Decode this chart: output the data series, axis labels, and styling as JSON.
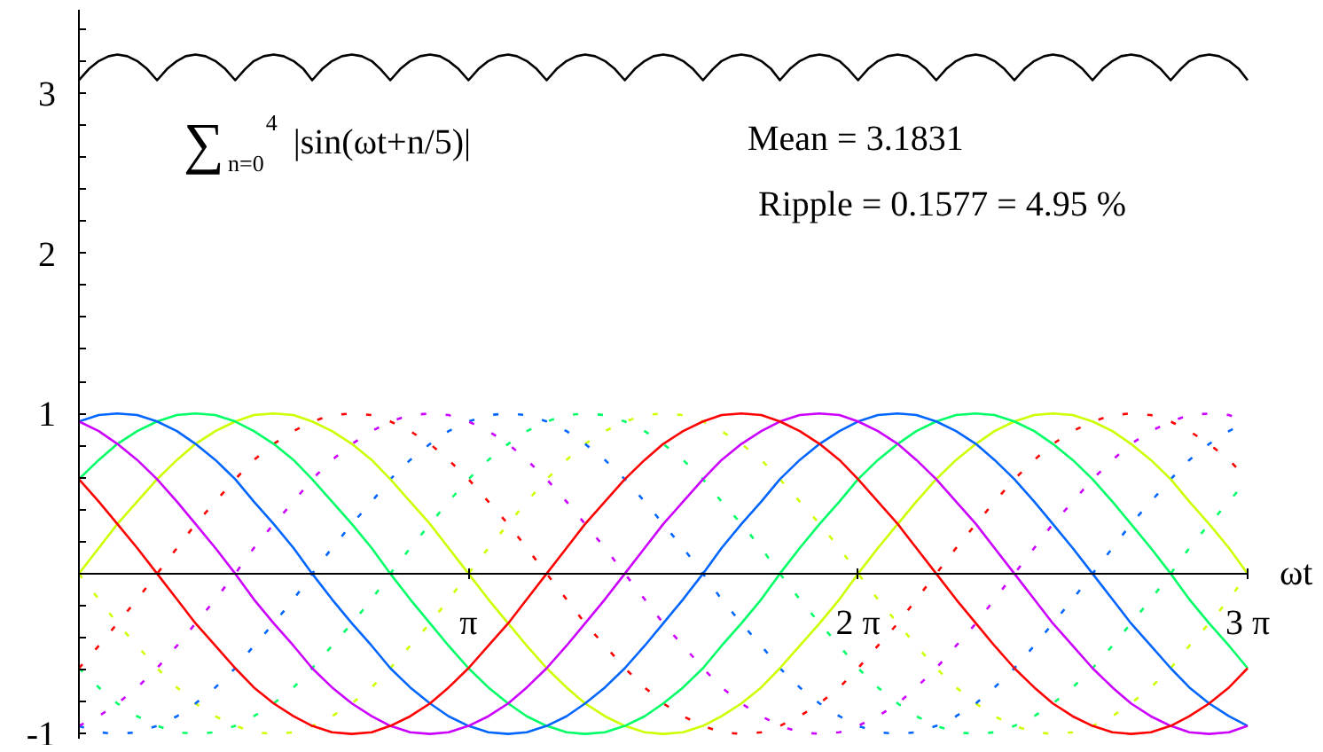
{
  "chart_data": {
    "type": "line",
    "xlabel": "ωt",
    "x": [
      0,
      0.16,
      0.31,
      0.47,
      0.63,
      0.79,
      0.94,
      1.1,
      1.26,
      1.41,
      1.57,
      1.73,
      1.88,
      2.04,
      2.2,
      2.36,
      2.51,
      2.67,
      2.83,
      2.98,
      3.14,
      3.3,
      3.46,
      3.61,
      3.77,
      3.93,
      4.08,
      4.24,
      4.4,
      4.56,
      4.71,
      4.87,
      5.03,
      5.18,
      5.34,
      5.5,
      5.65,
      5.81,
      5.97,
      6.13,
      6.28,
      6.44,
      6.6,
      6.75,
      6.91,
      7.07,
      7.23,
      7.38,
      7.54,
      7.7,
      7.85,
      8.01,
      8.17,
      8.33,
      8.48,
      8.64,
      8.8,
      8.95,
      9.11,
      9.27,
      9.42
    ],
    "xlim": [
      0,
      9.42
    ],
    "xticks": [
      {
        "value": 3.14,
        "label": "π"
      },
      {
        "value": 6.28,
        "label": "2 π"
      },
      {
        "value": 9.42,
        "label": "3 π"
      }
    ],
    "ylim": [
      -1.03,
      3.52
    ],
    "yticks": [
      -1,
      {
        "value": -0.8,
        "label": null
      },
      {
        "value": -0.6,
        "label": null
      },
      {
        "value": -0.4,
        "label": null
      },
      {
        "value": -0.2,
        "label": null
      },
      {
        "value": 0.2,
        "label": null
      },
      {
        "value": 0.4,
        "label": null
      },
      {
        "value": 0.6,
        "label": null
      },
      {
        "value": 0.8,
        "label": null
      },
      1,
      {
        "value": 1.2,
        "label": null
      },
      {
        "value": 1.4,
        "label": null
      },
      {
        "value": 1.6,
        "label": null
      },
      {
        "value": 1.8,
        "label": null
      },
      2,
      {
        "value": 2.2,
        "label": null
      },
      {
        "value": 2.4,
        "label": null
      },
      {
        "value": 2.6,
        "label": null
      },
      {
        "value": 2.8,
        "label": null
      },
      3,
      {
        "value": 3.2,
        "label": null
      },
      {
        "value": 3.4,
        "label": null
      }
    ],
    "series": [
      {
        "color": "#ccff00",
        "line_style": "dotted",
        "values": [
          0,
          -0.16,
          -0.31,
          -0.45,
          -0.59,
          -0.71,
          -0.81,
          -0.89,
          -0.95,
          -0.99,
          -1,
          -0.99,
          -0.95,
          -0.89,
          -0.81,
          -0.71,
          -0.59,
          -0.45,
          -0.31,
          -0.16,
          0,
          0.16,
          0.31,
          0.45,
          0.59,
          0.71,
          0.81,
          0.89,
          0.95,
          0.99,
          1,
          0.99,
          0.95,
          0.89,
          0.81,
          0.71,
          0.59,
          0.45,
          0.31,
          0.16,
          0,
          -0.16,
          -0.31,
          -0.45,
          -0.59,
          -0.71,
          -0.81,
          -0.89,
          -0.95,
          -0.99,
          -1,
          -0.99,
          -0.95,
          -0.89,
          -0.81,
          -0.71,
          -0.59,
          -0.45,
          -0.31,
          -0.16,
          0
        ]
      },
      {
        "color": "#00ff66",
        "line_style": "dotted",
        "values": [
          -0.59,
          -0.71,
          -0.81,
          -0.89,
          -0.95,
          -0.99,
          -1,
          -0.99,
          -0.95,
          -0.89,
          -0.81,
          -0.71,
          -0.59,
          -0.45,
          -0.31,
          -0.16,
          0,
          0.16,
          0.31,
          0.45,
          0.59,
          0.71,
          0.81,
          0.89,
          0.95,
          0.99,
          1,
          0.99,
          0.95,
          0.89,
          0.81,
          0.71,
          0.59,
          0.45,
          0.31,
          0.16,
          0,
          -0.16,
          -0.31,
          -0.45,
          -0.59,
          -0.71,
          -0.81,
          -0.89,
          -0.95,
          -0.99,
          -1,
          -0.99,
          -0.95,
          -0.89,
          -0.81,
          -0.71,
          -0.59,
          -0.45,
          -0.31,
          -0.16,
          0,
          0.16,
          0.31,
          0.45,
          0.59
        ]
      },
      {
        "color": "#0066ff",
        "line_style": "dotted",
        "values": [
          -0.95,
          -0.99,
          -1,
          -0.99,
          -0.95,
          -0.89,
          -0.81,
          -0.71,
          -0.59,
          -0.45,
          -0.31,
          -0.16,
          0,
          0.16,
          0.31,
          0.45,
          0.59,
          0.71,
          0.81,
          0.89,
          0.95,
          0.99,
          1,
          0.99,
          0.95,
          0.89,
          0.81,
          0.71,
          0.59,
          0.45,
          0.31,
          0.16,
          0,
          -0.16,
          -0.31,
          -0.45,
          -0.59,
          -0.71,
          -0.81,
          -0.89,
          -0.95,
          -0.99,
          -1,
          -0.99,
          -0.95,
          -0.89,
          -0.81,
          -0.71,
          -0.59,
          -0.45,
          -0.31,
          -0.16,
          0,
          0.16,
          0.31,
          0.45,
          0.59,
          0.71,
          0.81,
          0.89,
          0.95
        ]
      },
      {
        "color": "#cc00ff",
        "line_style": "dotted",
        "values": [
          -0.95,
          -0.89,
          -0.81,
          -0.71,
          -0.59,
          -0.45,
          -0.31,
          -0.16,
          0,
          0.16,
          0.31,
          0.45,
          0.59,
          0.71,
          0.81,
          0.89,
          0.95,
          0.99,
          1,
          0.99,
          0.95,
          0.89,
          0.81,
          0.71,
          0.59,
          0.45,
          0.31,
          0.16,
          0,
          -0.16,
          -0.31,
          -0.45,
          -0.59,
          -0.71,
          -0.81,
          -0.89,
          -0.95,
          -0.99,
          -1,
          -0.99,
          -0.95,
          -0.89,
          -0.81,
          -0.71,
          -0.59,
          -0.45,
          -0.31,
          -0.16,
          0,
          0.16,
          0.31,
          0.45,
          0.59,
          0.71,
          0.81,
          0.89,
          0.95,
          0.99,
          1,
          0.99,
          0.95
        ]
      },
      {
        "color": "#ff0000",
        "line_style": "dotted",
        "values": [
          -0.59,
          -0.45,
          -0.31,
          -0.16,
          0,
          0.16,
          0.31,
          0.45,
          0.59,
          0.71,
          0.81,
          0.89,
          0.95,
          0.99,
          1,
          0.99,
          0.95,
          0.89,
          0.81,
          0.71,
          0.59,
          0.45,
          0.31,
          0.16,
          0,
          -0.16,
          -0.31,
          -0.45,
          -0.59,
          -0.71,
          -0.81,
          -0.89,
          -0.95,
          -0.99,
          -1,
          -0.99,
          -0.95,
          -0.89,
          -0.81,
          -0.71,
          -0.59,
          -0.45,
          -0.31,
          -0.16,
          0,
          0.16,
          0.31,
          0.45,
          0.59,
          0.71,
          0.81,
          0.89,
          0.95,
          0.99,
          1,
          0.99,
          0.95,
          0.89,
          0.81,
          0.71,
          0.59
        ]
      },
      {
        "color": "#ccff00",
        "line_style": "solid",
        "values": [
          0,
          0.16,
          0.31,
          0.45,
          0.59,
          0.71,
          0.81,
          0.89,
          0.95,
          0.99,
          1,
          0.99,
          0.95,
          0.89,
          0.81,
          0.71,
          0.59,
          0.45,
          0.31,
          0.16,
          0,
          -0.16,
          -0.31,
          -0.45,
          -0.59,
          -0.71,
          -0.81,
          -0.89,
          -0.95,
          -0.99,
          -1,
          -0.99,
          -0.95,
          -0.89,
          -0.81,
          -0.71,
          -0.59,
          -0.45,
          -0.31,
          -0.16,
          0,
          0.16,
          0.31,
          0.45,
          0.59,
          0.71,
          0.81,
          0.89,
          0.95,
          0.99,
          1,
          0.99,
          0.95,
          0.89,
          0.81,
          0.71,
          0.59,
          0.45,
          0.31,
          0.16,
          0
        ]
      },
      {
        "color": "#00ff66",
        "line_style": "solid",
        "values": [
          0.59,
          0.71,
          0.81,
          0.89,
          0.95,
          0.99,
          1,
          0.99,
          0.95,
          0.89,
          0.81,
          0.71,
          0.59,
          0.45,
          0.31,
          0.16,
          0,
          -0.16,
          -0.31,
          -0.45,
          -0.59,
          -0.71,
          -0.81,
          -0.89,
          -0.95,
          -0.99,
          -1,
          -0.99,
          -0.95,
          -0.89,
          -0.81,
          -0.71,
          -0.59,
          -0.45,
          -0.31,
          -0.16,
          0,
          0.16,
          0.31,
          0.45,
          0.59,
          0.71,
          0.81,
          0.89,
          0.95,
          0.99,
          1,
          0.99,
          0.95,
          0.89,
          0.81,
          0.71,
          0.59,
          0.45,
          0.31,
          0.16,
          0,
          -0.16,
          -0.31,
          -0.45,
          -0.59
        ]
      },
      {
        "color": "#0066ff",
        "line_style": "solid",
        "values": [
          0.95,
          0.99,
          1,
          0.99,
          0.95,
          0.89,
          0.81,
          0.71,
          0.59,
          0.45,
          0.31,
          0.16,
          0,
          -0.16,
          -0.31,
          -0.45,
          -0.59,
          -0.71,
          -0.81,
          -0.89,
          -0.95,
          -0.99,
          -1,
          -0.99,
          -0.95,
          -0.89,
          -0.81,
          -0.71,
          -0.59,
          -0.45,
          -0.31,
          -0.16,
          0,
          0.16,
          0.31,
          0.45,
          0.59,
          0.71,
          0.81,
          0.89,
          0.95,
          0.99,
          1,
          0.99,
          0.95,
          0.89,
          0.81,
          0.71,
          0.59,
          0.45,
          0.31,
          0.16,
          0,
          -0.16,
          -0.31,
          -0.45,
          -0.59,
          -0.71,
          -0.81,
          -0.89,
          -0.95
        ]
      },
      {
        "color": "#cc00ff",
        "line_style": "solid",
        "values": [
          0.95,
          0.89,
          0.81,
          0.71,
          0.59,
          0.45,
          0.31,
          0.16,
          0,
          -0.16,
          -0.31,
          -0.45,
          -0.59,
          -0.71,
          -0.81,
          -0.89,
          -0.95,
          -0.99,
          -1,
          -0.99,
          -0.95,
          -0.89,
          -0.81,
          -0.71,
          -0.59,
          -0.45,
          -0.31,
          -0.16,
          0,
          0.16,
          0.31,
          0.45,
          0.59,
          0.71,
          0.81,
          0.89,
          0.95,
          0.99,
          1,
          0.99,
          0.95,
          0.89,
          0.81,
          0.71,
          0.59,
          0.45,
          0.31,
          0.16,
          0,
          -0.16,
          -0.31,
          -0.45,
          -0.59,
          -0.71,
          -0.81,
          -0.89,
          -0.95,
          -0.99,
          -1,
          -0.99,
          -0.95
        ]
      },
      {
        "color": "#ff0000",
        "line_style": "solid",
        "values": [
          0.59,
          0.45,
          0.31,
          0.16,
          0,
          -0.16,
          -0.31,
          -0.45,
          -0.59,
          -0.71,
          -0.81,
          -0.89,
          -0.95,
          -0.99,
          -1,
          -0.99,
          -0.95,
          -0.89,
          -0.81,
          -0.71,
          -0.59,
          -0.45,
          -0.31,
          -0.16,
          0,
          0.16,
          0.31,
          0.45,
          0.59,
          0.71,
          0.81,
          0.89,
          0.95,
          0.99,
          1,
          0.99,
          0.95,
          0.89,
          0.81,
          0.71,
          0.59,
          0.45,
          0.31,
          0.16,
          0,
          -0.16,
          -0.31,
          -0.45,
          -0.59,
          -0.71,
          -0.81,
          -0.89,
          -0.95,
          -0.99,
          -1,
          -0.99,
          -0.95,
          -0.89,
          -0.81,
          -0.71,
          -0.59
        ]
      },
      {
        "color": "#000000",
        "line_style": "solid",
        "x": [
          0,
          0.08,
          0.16,
          0.24,
          0.31,
          0.39,
          0.47,
          0.55,
          0.63,
          0.71,
          0.79,
          0.86,
          0.94,
          1.02,
          1.1,
          1.18,
          1.26,
          1.34,
          1.41,
          1.49,
          1.57,
          1.65,
          1.73,
          1.81,
          1.88,
          1.96,
          2.04,
          2.12,
          2.2,
          2.28,
          2.36,
          2.43,
          2.51,
          2.59,
          2.67,
          2.75,
          2.83,
          2.91,
          2.98,
          3.06,
          3.14,
          3.22,
          3.3,
          3.38,
          3.46,
          3.53,
          3.61,
          3.69,
          3.77,
          3.85,
          3.93,
          4.01,
          4.08,
          4.16,
          4.24,
          4.32,
          4.4,
          4.48,
          4.56,
          4.63,
          4.71,
          4.79,
          4.87,
          4.95,
          5.03,
          5.11,
          5.18,
          5.26,
          5.34,
          5.42,
          5.5,
          5.58,
          5.65,
          5.73,
          5.81,
          5.89,
          5.97,
          6.05,
          6.13,
          6.2,
          6.28,
          6.36,
          6.44,
          6.52,
          6.6,
          6.68,
          6.75,
          6.83,
          6.91,
          6.99,
          7.07,
          7.15,
          7.23,
          7.3,
          7.38,
          7.46,
          7.54,
          7.62,
          7.7,
          7.78,
          7.85,
          7.93,
          8.01,
          8.09,
          8.17,
          8.25,
          8.33,
          8.4,
          8.48,
          8.56,
          8.64,
          8.72,
          8.8,
          8.88,
          8.95,
          9.03,
          9.11,
          9.19,
          9.27,
          9.35,
          9.42
        ],
        "values": [
          3.08,
          3.15,
          3.2,
          3.23,
          3.24,
          3.23,
          3.2,
          3.15,
          3.08,
          3.15,
          3.2,
          3.23,
          3.24,
          3.23,
          3.2,
          3.15,
          3.08,
          3.15,
          3.2,
          3.23,
          3.24,
          3.23,
          3.2,
          3.15,
          3.08,
          3.15,
          3.2,
          3.23,
          3.24,
          3.23,
          3.2,
          3.15,
          3.08,
          3.15,
          3.2,
          3.23,
          3.24,
          3.23,
          3.2,
          3.15,
          3.08,
          3.15,
          3.2,
          3.23,
          3.24,
          3.23,
          3.2,
          3.15,
          3.08,
          3.15,
          3.2,
          3.23,
          3.24,
          3.23,
          3.2,
          3.15,
          3.08,
          3.15,
          3.2,
          3.23,
          3.24,
          3.23,
          3.2,
          3.15,
          3.08,
          3.15,
          3.2,
          3.23,
          3.24,
          3.23,
          3.2,
          3.15,
          3.08,
          3.15,
          3.2,
          3.23,
          3.24,
          3.23,
          3.2,
          3.15,
          3.08,
          3.15,
          3.2,
          3.23,
          3.24,
          3.23,
          3.2,
          3.15,
          3.08,
          3.15,
          3.2,
          3.23,
          3.24,
          3.23,
          3.2,
          3.15,
          3.08,
          3.15,
          3.2,
          3.23,
          3.24,
          3.23,
          3.2,
          3.15,
          3.08,
          3.15,
          3.2,
          3.23,
          3.24,
          3.23,
          3.2,
          3.15,
          3.08,
          3.15,
          3.2,
          3.23,
          3.24,
          3.23,
          3.2,
          3.15,
          3.08
        ]
      }
    ],
    "annotations": [
      "∑$_{n=0}$$^{4}$ |sin(ωt+n/5)|",
      "Mean = 3.1831",
      "Ripple = 0.1577 = 4.95 %"
    ]
  }
}
